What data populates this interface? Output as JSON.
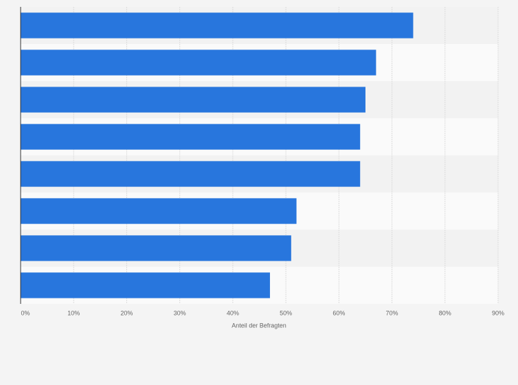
{
  "chart_data": {
    "type": "bar",
    "orientation": "horizontal",
    "categories": [
      null,
      null,
      null,
      null,
      null,
      null,
      null,
      null
    ],
    "values": [
      74,
      67,
      65,
      64,
      64,
      52,
      51,
      47
    ],
    "color": "#2876dd",
    "xlabel": "Anteil der Befragten",
    "xlim": [
      0,
      90
    ],
    "xticks": [
      {
        "value": 0,
        "label": "0%"
      },
      {
        "value": 10,
        "label": "10%"
      },
      {
        "value": 20,
        "label": "20%"
      },
      {
        "value": 30,
        "label": "30%"
      },
      {
        "value": 40,
        "label": "40%"
      },
      {
        "value": 50,
        "label": "50%"
      },
      {
        "value": 60,
        "label": "60%"
      },
      {
        "value": 70,
        "label": "70%"
      },
      {
        "value": 80,
        "label": "80%"
      },
      {
        "value": 90,
        "label": "90%"
      }
    ],
    "grid": true
  }
}
